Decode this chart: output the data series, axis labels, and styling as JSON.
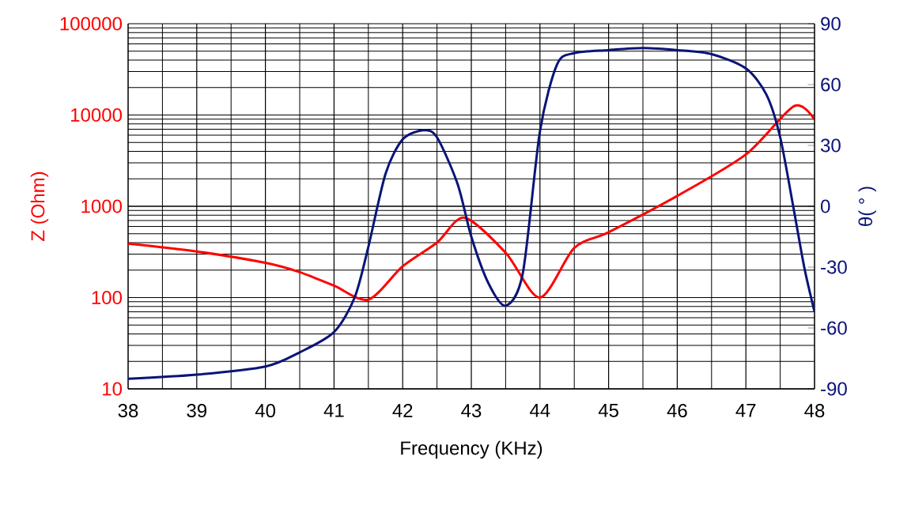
{
  "chart_data": {
    "type": "line",
    "xlabel": "Frequency (KHz)",
    "ylabel": "Z (Ohm)",
    "y2label": "θ( ° )",
    "log": "y",
    "grid": true,
    "line_style": "solid",
    "marker": "none",
    "xlim": [
      38,
      48
    ],
    "xticks": [
      38,
      39,
      40,
      41,
      42,
      43,
      44,
      45,
      46,
      47,
      48
    ],
    "ylim": [
      10,
      100000
    ],
    "yticks": [
      10,
      100,
      1000,
      10000,
      100000
    ],
    "y2lim": [
      -90,
      90
    ],
    "y2ticks": [
      -90,
      -60,
      -30,
      0,
      30,
      60,
      90
    ],
    "series": [
      {
        "color": "#ff0000",
        "x": [
          38,
          39,
          40,
          40.5,
          41,
          41.5,
          42,
          42.5,
          42.9,
          43.5,
          44,
          44.5,
          45,
          46,
          47,
          47.7,
          48
        ],
        "values": [
          390,
          320,
          240,
          190,
          135,
          95,
          220,
          400,
          750,
          310,
          100,
          350,
          520,
          1300,
          3700,
          12500,
          8900
        ]
      },
      {
        "color": "#0a1478",
        "axis": "y2",
        "x": [
          38,
          39,
          40,
          40.5,
          41,
          41.3,
          41.5,
          41.75,
          42,
          42.3,
          42.5,
          42.8,
          43,
          43.25,
          43.5,
          43.75,
          44,
          44.25,
          44.5,
          45,
          45.5,
          46,
          46.5,
          47,
          47.3,
          47.5,
          47.7,
          47.85,
          48
        ],
        "values": [
          -85,
          -83,
          -79,
          -72,
          -62,
          -45,
          -20,
          16,
          33,
          37.5,
          34,
          11,
          -15,
          -38,
          -49,
          -33,
          37,
          70,
          75.5,
          77,
          78,
          77,
          75,
          68,
          55,
          34,
          -2,
          -30,
          -52
        ]
      }
    ]
  }
}
